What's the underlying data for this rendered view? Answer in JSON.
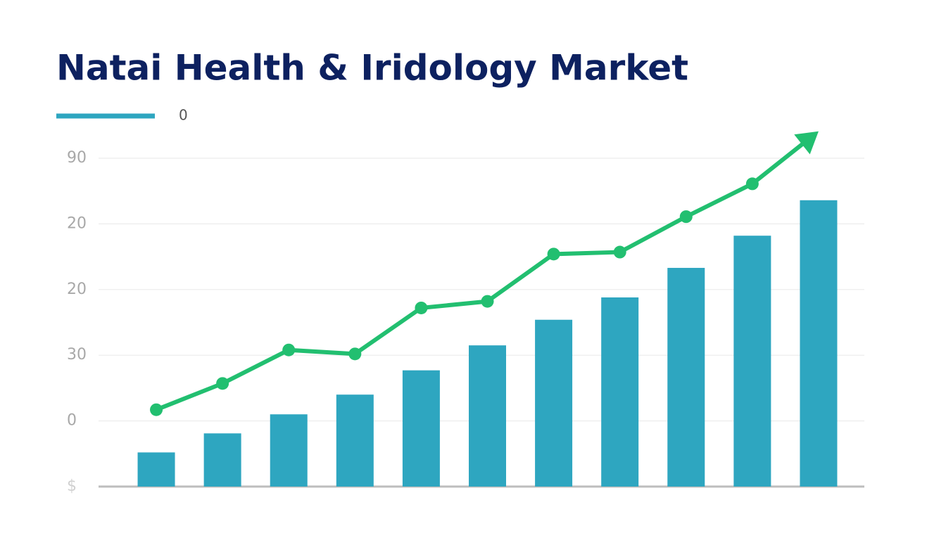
{
  "chart_data": {
    "type": "bar_line",
    "title": "Natai Health & Iridology Market",
    "legend_label": "0",
    "legend_color": "#2ea6c0",
    "categories": [
      null,
      null,
      null,
      null,
      null,
      null,
      null,
      null,
      null,
      null,
      null
    ],
    "series": [
      {
        "type": "bar",
        "color": "#2ea6c0",
        "values": [
          0.52,
          0.81,
          1.1,
          1.4,
          1.77,
          2.15,
          2.54,
          2.88,
          3.33,
          3.82,
          4.36
        ]
      },
      {
        "type": "line",
        "color": "#22bf70",
        "values": [
          1.17,
          1.57,
          2.08,
          2.02,
          2.72,
          2.82,
          3.54,
          3.57,
          4.11,
          4.61,
          5.41
        ]
      }
    ],
    "arrow_end": true,
    "ylim": [
      0,
      5.5
    ],
    "yticks": [
      0,
      1,
      2,
      3,
      4,
      5
    ],
    "y_tick_texts": [
      "$",
      "0",
      "30",
      "20",
      "20",
      "90"
    ],
    "grid": true
  }
}
